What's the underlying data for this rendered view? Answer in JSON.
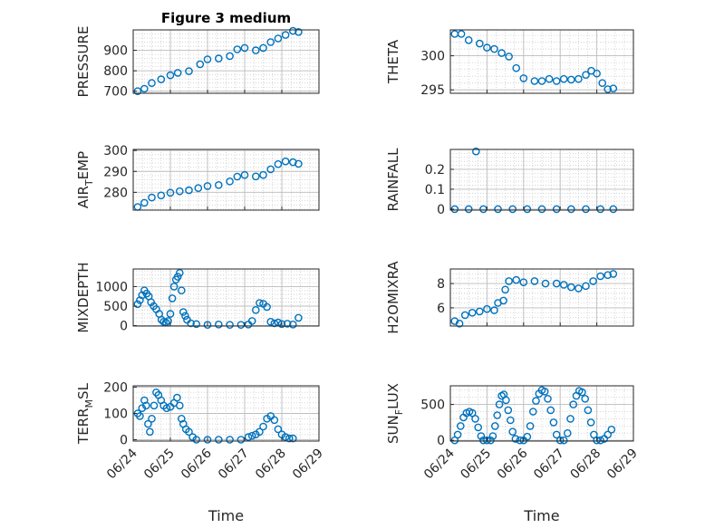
{
  "figure_title": "Figure 3 medium",
  "marker_color": "#0072BD",
  "chart_data": [
    {
      "type": "scatter",
      "ylabel": "PRESSURE",
      "ylim": [
        690,
        1000
      ],
      "yticks": [
        700,
        800,
        900
      ],
      "xticks": [
        "06/24",
        "06/25",
        "06/26",
        "06/27",
        "06/28",
        "06/29"
      ],
      "xlim": [
        0,
        5
      ],
      "title": "Figure 3 medium",
      "points": [
        [
          0.12,
          700
        ],
        [
          0.3,
          712
        ],
        [
          0.5,
          740
        ],
        [
          0.75,
          758
        ],
        [
          1.0,
          778
        ],
        [
          1.2,
          790
        ],
        [
          1.5,
          798
        ],
        [
          1.8,
          832
        ],
        [
          2.0,
          856
        ],
        [
          2.3,
          860
        ],
        [
          2.6,
          872
        ],
        [
          2.8,
          905
        ],
        [
          3.0,
          912
        ],
        [
          3.3,
          900
        ],
        [
          3.5,
          912
        ],
        [
          3.7,
          940
        ],
        [
          3.9,
          958
        ],
        [
          4.1,
          975
        ],
        [
          4.3,
          995
        ],
        [
          4.45,
          990
        ]
      ]
    },
    {
      "type": "scatter",
      "ylabel": "THETA",
      "ylim": [
        294.5,
        303.8
      ],
      "yticks": [
        295,
        300
      ],
      "xticks": [
        "06/24",
        "06/25",
        "06/26",
        "06/27",
        "06/28",
        "06/29"
      ],
      "xlim": [
        0,
        5
      ],
      "points": [
        [
          0.12,
          303.2
        ],
        [
          0.3,
          303.2
        ],
        [
          0.5,
          302.3
        ],
        [
          0.8,
          301.8
        ],
        [
          1.0,
          301.2
        ],
        [
          1.2,
          301
        ],
        [
          1.4,
          300.4
        ],
        [
          1.6,
          299.9
        ],
        [
          1.8,
          298.2
        ],
        [
          2.0,
          296.7
        ],
        [
          2.3,
          296.3
        ],
        [
          2.5,
          296.3
        ],
        [
          2.7,
          296.6
        ],
        [
          2.9,
          296.3
        ],
        [
          3.1,
          296.6
        ],
        [
          3.3,
          296.5
        ],
        [
          3.5,
          296.6
        ],
        [
          3.7,
          297.2
        ],
        [
          3.85,
          297.8
        ],
        [
          4.0,
          297.4
        ],
        [
          4.15,
          296
        ],
        [
          4.3,
          295.1
        ],
        [
          4.45,
          295.2
        ]
      ]
    },
    {
      "type": "scatter",
      "ylabel": "AIR_TEMP",
      "ylim": [
        271.5,
        300.5
      ],
      "yticks": [
        280,
        290,
        300
      ],
      "xticks": [
        "06/24",
        "06/25",
        "06/26",
        "06/27",
        "06/28",
        "06/29"
      ],
      "xlim": [
        0,
        5
      ],
      "points": [
        [
          0.12,
          273
        ],
        [
          0.3,
          275
        ],
        [
          0.5,
          277.5
        ],
        [
          0.75,
          278.5
        ],
        [
          1.0,
          279.8
        ],
        [
          1.25,
          280.5
        ],
        [
          1.5,
          281
        ],
        [
          1.75,
          282
        ],
        [
          2.0,
          283
        ],
        [
          2.3,
          283.5
        ],
        [
          2.6,
          285.2
        ],
        [
          2.8,
          287.5
        ],
        [
          3.0,
          288.3
        ],
        [
          3.3,
          287.6
        ],
        [
          3.5,
          288.3
        ],
        [
          3.7,
          291
        ],
        [
          3.9,
          293.5
        ],
        [
          4.1,
          294.8
        ],
        [
          4.3,
          294.4
        ],
        [
          4.45,
          293.6
        ]
      ]
    },
    {
      "type": "scatter",
      "ylabel": "RAINFALL",
      "ylim": [
        -0.005,
        0.3
      ],
      "yticks": [
        0,
        0.1,
        0.2
      ],
      "xticks": [
        "06/24",
        "06/25",
        "06/26",
        "06/27",
        "06/28",
        "06/29"
      ],
      "xlim": [
        0,
        5
      ],
      "points": [
        [
          0.12,
          0
        ],
        [
          0.5,
          0
        ],
        [
          0.9,
          0
        ],
        [
          1.3,
          0
        ],
        [
          1.7,
          0
        ],
        [
          2.1,
          0
        ],
        [
          2.5,
          0
        ],
        [
          2.9,
          0
        ],
        [
          3.3,
          0
        ],
        [
          3.7,
          0
        ],
        [
          4.1,
          0
        ],
        [
          4.45,
          0
        ],
        [
          0.7,
          0.29
        ]
      ]
    },
    {
      "type": "scatter",
      "ylabel": "MIXDEPTH",
      "ylim": [
        -10,
        1450
      ],
      "yticks": [
        0,
        500,
        1000
      ],
      "xticks": [
        "06/24",
        "06/25",
        "06/26",
        "06/27",
        "06/28",
        "06/29"
      ],
      "xlim": [
        0,
        5
      ],
      "points": [
        [
          0.12,
          550
        ],
        [
          0.18,
          650
        ],
        [
          0.24,
          780
        ],
        [
          0.3,
          900
        ],
        [
          0.36,
          820
        ],
        [
          0.42,
          750
        ],
        [
          0.48,
          600
        ],
        [
          0.55,
          500
        ],
        [
          0.62,
          420
        ],
        [
          0.7,
          300
        ],
        [
          0.76,
          150
        ],
        [
          0.82,
          100
        ],
        [
          0.88,
          80
        ],
        [
          0.94,
          120
        ],
        [
          1.0,
          300
        ],
        [
          1.05,
          700
        ],
        [
          1.1,
          1000
        ],
        [
          1.15,
          1180
        ],
        [
          1.2,
          1250
        ],
        [
          1.25,
          1350
        ],
        [
          1.3,
          900
        ],
        [
          1.35,
          350
        ],
        [
          1.4,
          250
        ],
        [
          1.45,
          150
        ],
        [
          1.55,
          60
        ],
        [
          1.7,
          40
        ],
        [
          2.0,
          20
        ],
        [
          2.3,
          30
        ],
        [
          2.6,
          20
        ],
        [
          2.9,
          20
        ],
        [
          3.1,
          30
        ],
        [
          3.2,
          120
        ],
        [
          3.3,
          400
        ],
        [
          3.4,
          580
        ],
        [
          3.5,
          560
        ],
        [
          3.6,
          480
        ],
        [
          3.7,
          100
        ],
        [
          3.8,
          60
        ],
        [
          3.9,
          80
        ],
        [
          4.0,
          40
        ],
        [
          4.15,
          50
        ],
        [
          4.3,
          30
        ],
        [
          4.45,
          200
        ]
      ]
    },
    {
      "type": "scatter",
      "ylabel": "H2OMIXRA",
      "ylim": [
        4.5,
        9.2
      ],
      "yticks": [
        6,
        8
      ],
      "xticks": [
        "06/24",
        "06/25",
        "06/26",
        "06/27",
        "06/28",
        "06/29"
      ],
      "xlim": [
        0,
        5
      ],
      "points": [
        [
          0.12,
          4.9
        ],
        [
          0.25,
          4.7
        ],
        [
          0.4,
          5.4
        ],
        [
          0.6,
          5.6
        ],
        [
          0.8,
          5.7
        ],
        [
          1.0,
          5.9
        ],
        [
          1.2,
          5.8
        ],
        [
          1.3,
          6.4
        ],
        [
          1.45,
          6.6
        ],
        [
          1.5,
          7.5
        ],
        [
          1.6,
          8.2
        ],
        [
          1.8,
          8.3
        ],
        [
          2.0,
          8.1
        ],
        [
          2.3,
          8.2
        ],
        [
          2.6,
          8.0
        ],
        [
          2.9,
          8.0
        ],
        [
          3.1,
          7.9
        ],
        [
          3.3,
          7.7
        ],
        [
          3.5,
          7.6
        ],
        [
          3.7,
          7.8
        ],
        [
          3.9,
          8.2
        ],
        [
          4.1,
          8.6
        ],
        [
          4.3,
          8.7
        ],
        [
          4.45,
          8.8
        ]
      ]
    },
    {
      "type": "scatter",
      "ylabel": "TERR_MSL",
      "ylim": [
        -5,
        205
      ],
      "yticks": [
        0,
        100,
        200
      ],
      "xticks": [
        "06/24",
        "06/25",
        "06/26",
        "06/27",
        "06/28",
        "06/29"
      ],
      "xlim": [
        0,
        5
      ],
      "points": [
        [
          0.12,
          100
        ],
        [
          0.18,
          90
        ],
        [
          0.24,
          120
        ],
        [
          0.3,
          150
        ],
        [
          0.35,
          130
        ],
        [
          0.4,
          60
        ],
        [
          0.45,
          30
        ],
        [
          0.5,
          80
        ],
        [
          0.56,
          130
        ],
        [
          0.62,
          180
        ],
        [
          0.68,
          170
        ],
        [
          0.75,
          150
        ],
        [
          0.82,
          130
        ],
        [
          0.9,
          120
        ],
        [
          1.0,
          125
        ],
        [
          1.1,
          140
        ],
        [
          1.18,
          160
        ],
        [
          1.25,
          130
        ],
        [
          1.3,
          80
        ],
        [
          1.35,
          60
        ],
        [
          1.42,
          40
        ],
        [
          1.5,
          30
        ],
        [
          1.6,
          10
        ],
        [
          1.7,
          0
        ],
        [
          2.0,
          0
        ],
        [
          2.3,
          0
        ],
        [
          2.6,
          0
        ],
        [
          2.9,
          0
        ],
        [
          3.1,
          10
        ],
        [
          3.2,
          15
        ],
        [
          3.3,
          20
        ],
        [
          3.4,
          30
        ],
        [
          3.5,
          50
        ],
        [
          3.6,
          80
        ],
        [
          3.7,
          90
        ],
        [
          3.8,
          75
        ],
        [
          3.9,
          40
        ],
        [
          4.0,
          20
        ],
        [
          4.1,
          10
        ],
        [
          4.2,
          5
        ],
        [
          4.3,
          5
        ]
      ]
    },
    {
      "type": "scatter",
      "ylabel": "SUN_FLUX",
      "ylim": [
        -10,
        760
      ],
      "yticks": [
        0,
        500
      ],
      "xticks": [
        "06/24",
        "06/25",
        "06/26",
        "06/27",
        "06/28",
        "06/29"
      ],
      "xlim": [
        0,
        5
      ],
      "points": [
        [
          0.12,
          0
        ],
        [
          0.2,
          80
        ],
        [
          0.28,
          200
        ],
        [
          0.36,
          320
        ],
        [
          0.44,
          380
        ],
        [
          0.52,
          400
        ],
        [
          0.6,
          380
        ],
        [
          0.68,
          300
        ],
        [
          0.76,
          180
        ],
        [
          0.84,
          60
        ],
        [
          0.9,
          0
        ],
        [
          1.0,
          0
        ],
        [
          1.1,
          0
        ],
        [
          1.16,
          60
        ],
        [
          1.22,
          200
        ],
        [
          1.28,
          350
        ],
        [
          1.34,
          500
        ],
        [
          1.4,
          620
        ],
        [
          1.46,
          640
        ],
        [
          1.52,
          560
        ],
        [
          1.58,
          420
        ],
        [
          1.64,
          280
        ],
        [
          1.7,
          120
        ],
        [
          1.78,
          20
        ],
        [
          1.9,
          0
        ],
        [
          2.0,
          0
        ],
        [
          2.1,
          50
        ],
        [
          2.18,
          200
        ],
        [
          2.26,
          400
        ],
        [
          2.34,
          550
        ],
        [
          2.42,
          650
        ],
        [
          2.5,
          700
        ],
        [
          2.58,
          680
        ],
        [
          2.66,
          580
        ],
        [
          2.74,
          420
        ],
        [
          2.82,
          250
        ],
        [
          2.9,
          80
        ],
        [
          3.0,
          0
        ],
        [
          3.1,
          0
        ],
        [
          3.2,
          100
        ],
        [
          3.28,
          300
        ],
        [
          3.36,
          500
        ],
        [
          3.44,
          620
        ],
        [
          3.52,
          690
        ],
        [
          3.6,
          670
        ],
        [
          3.68,
          580
        ],
        [
          3.76,
          420
        ],
        [
          3.84,
          250
        ],
        [
          3.92,
          80
        ],
        [
          4.0,
          0
        ],
        [
          4.1,
          0
        ],
        [
          4.2,
          20
        ],
        [
          4.3,
          80
        ],
        [
          4.4,
          150
        ]
      ]
    }
  ],
  "x_axis_label": "Time"
}
